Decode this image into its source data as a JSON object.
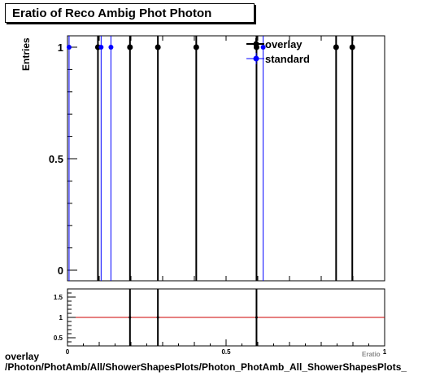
{
  "title": "Eratio of Reco Ambig Phot Photon",
  "ylabel": "Entries",
  "xlabel_cut": "Eratio",
  "footer": {
    "line1": "overlay",
    "line2": "/Photon/PhotAmb/All/ShowerShapesPlots/Photon_PhotAmb_All_ShowerShapesPlots_"
  },
  "colors": {
    "overlay": "#000000",
    "standard": "#0000ff",
    "ratio_line": "#cc0000"
  },
  "chart_data": [
    {
      "type": "scatter",
      "xlim": [
        0,
        1
      ],
      "ylim": [
        0,
        1.05
      ],
      "ytick_labels": [
        {
          "v": 0,
          "t": "0"
        },
        {
          "v": 0.5,
          "t": "0.5"
        },
        {
          "v": 1,
          "t": "1"
        }
      ],
      "legend": {
        "placement": "top-right",
        "entries": [
          "overlay",
          "standard"
        ]
      },
      "series": [
        {
          "name": "overlay",
          "x": [
            0.096,
            0.197,
            0.285,
            0.406,
            0.596,
            0.847,
            0.898
          ],
          "y": [
            1,
            1,
            1,
            1,
            1,
            1,
            1
          ]
        },
        {
          "name": "standard",
          "x": [
            0.005,
            0.106,
            0.137,
            0.617
          ],
          "y": [
            1,
            1,
            1,
            1
          ]
        }
      ]
    },
    {
      "type": "line",
      "xlim": [
        0,
        1
      ],
      "ylim": [
        0.3,
        1.7
      ],
      "xtick_labels": [
        {
          "v": 0,
          "t": "0"
        },
        {
          "v": 0.5,
          "t": "0.5"
        },
        {
          "v": 1,
          "t": "1"
        }
      ],
      "ytick_labels": [
        {
          "v": 0.5,
          "t": "0.5"
        },
        {
          "v": 1,
          "t": "1"
        },
        {
          "v": 1.5,
          "t": "1.5"
        }
      ],
      "reference_line": 1,
      "series": [
        {
          "x": [
            0.197,
            0.285,
            0.596
          ],
          "y": [
            1,
            1,
            1
          ]
        }
      ]
    }
  ]
}
